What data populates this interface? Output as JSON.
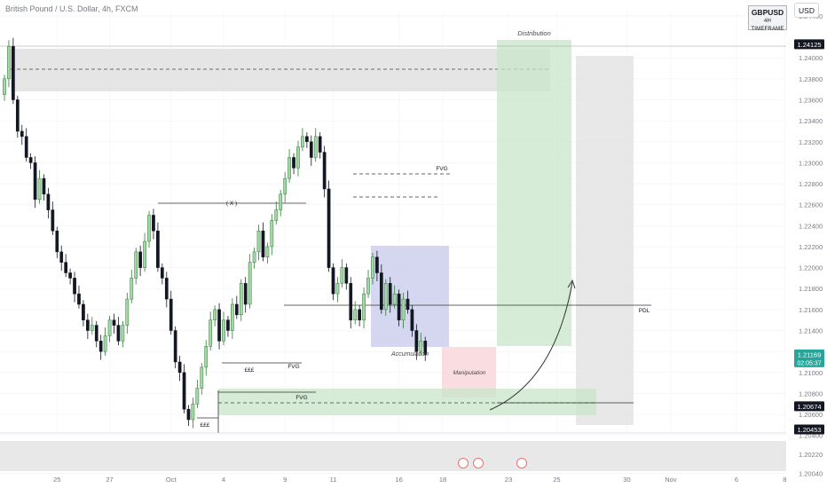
{
  "header": {
    "symbol_line": "British Pound / U.S. Dollar, 4h, FXCM",
    "badge_symbol": "GBPUSD",
    "badge_timeframe": "4H TIMEFRAME",
    "currency": "USD"
  },
  "chart_data": {
    "type": "candlestick",
    "ylim": [
      1.2022,
      1.2445
    ],
    "y_ticks": [
      "1.24400",
      "1.24000",
      "1.23800",
      "1.23600",
      "1.23400",
      "1.23200",
      "1.23000",
      "1.22800",
      "1.22600",
      "1.22400",
      "1.22200",
      "1.22000",
      "1.21800",
      "1.21600",
      "1.21400",
      "1.21200",
      "1.21000",
      "1.20800",
      "1.20600",
      "1.20400",
      "1.20220",
      "1.20040"
    ],
    "x_ticks": [
      {
        "label": "25",
        "index": 12
      },
      {
        "label": "27",
        "index": 24
      },
      {
        "label": "Oct",
        "index": 38
      },
      {
        "label": "4",
        "index": 50
      },
      {
        "label": "9",
        "index": 64
      },
      {
        "label": "11",
        "index": 75
      },
      {
        "label": "16",
        "index": 90
      },
      {
        "label": "18",
        "index": 100
      },
      {
        "label": "23",
        "index": 115
      },
      {
        "label": "25",
        "index": 126
      },
      {
        "label": "30",
        "index": 142
      },
      {
        "label": "Nov",
        "index": 152
      },
      {
        "label": "6",
        "index": 167
      },
      {
        "label": "8",
        "index": 178
      }
    ],
    "price_labels": [
      {
        "value": "1.24125",
        "price": 1.24125,
        "color": "#131722"
      },
      {
        "value": "1.21169",
        "sub": "02:05:37",
        "price": 1.21169,
        "color": "#26a69a"
      },
      {
        "value": "1.20674",
        "price": 1.20674,
        "color": "#131722"
      },
      {
        "value": "1.20453",
        "price": 1.20453,
        "color": "#131722"
      }
    ],
    "candle_closes": [
      1.238,
      1.2411,
      1.236,
      1.233,
      1.2325,
      1.2305,
      1.23,
      1.2265,
      1.2285,
      1.227,
      1.2255,
      1.2235,
      1.2215,
      1.2205,
      1.2195,
      1.219,
      1.2175,
      1.2165,
      1.215,
      1.214,
      1.2145,
      1.213,
      1.212,
      1.2135,
      1.215,
      1.2145,
      1.213,
      1.2145,
      1.217,
      1.219,
      1.2215,
      1.22,
      1.2225,
      1.225,
      1.2235,
      1.22,
      1.219,
      1.217,
      1.214,
      1.211,
      1.21,
      1.2065,
      1.2055,
      1.207,
      1.2085,
      1.2105,
      1.2125,
      1.215,
      1.216,
      1.213,
      1.215,
      1.214,
      1.2165,
      1.2155,
      1.2185,
      1.2165,
      1.2205,
      1.2215,
      1.2235,
      1.221,
      1.222,
      1.2245,
      1.2255,
      1.227,
      1.2285,
      1.2305,
      1.2295,
      1.2315,
      1.2325,
      1.232,
      1.2305,
      1.2325,
      1.231,
      1.2275,
      1.22,
      1.2175,
      1.2185,
      1.22,
      1.2185,
      1.215,
      1.216,
      1.215,
      1.2175,
      1.219,
      1.221,
      1.2195,
      1.216,
      1.2185,
      1.2165,
      1.2175,
      1.215,
      1.217,
      1.216,
      1.214,
      1.212,
      1.213,
      1.2117
    ],
    "annotations": {
      "distribution": "Distribution",
      "accumulation": "Accumulation",
      "manipulation": "Manipulation",
      "fvg_top": "FVG",
      "fvg_mid": "FVG",
      "fvg_bottom": "FVG",
      "x_label": "( X )",
      "ggg_1": "£££",
      "ggg_2": "£££",
      "pdl": "PDL"
    },
    "colors": {
      "up": "#26a69a",
      "down": "#131722",
      "bull_fill": "#a5d6a7",
      "grid": "#f0f3fa"
    }
  }
}
